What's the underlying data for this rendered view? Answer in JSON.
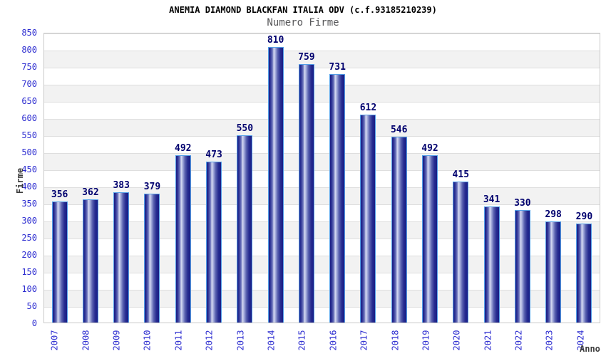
{
  "chart_data": {
    "type": "bar",
    "title": "ANEMIA DIAMOND BLACKFAN ITALIA ODV (c.f.93185210239)",
    "subtitle": "Numero Firme",
    "xlabel": "Anno",
    "ylabel": "Firme",
    "categories": [
      "2007",
      "2008",
      "2009",
      "2010",
      "2011",
      "2012",
      "2013",
      "2014",
      "2015",
      "2016",
      "2017",
      "2018",
      "2019",
      "2020",
      "2021",
      "2022",
      "2023",
      "2024"
    ],
    "values": [
      356,
      362,
      383,
      379,
      492,
      473,
      550,
      810,
      759,
      731,
      612,
      546,
      492,
      415,
      341,
      330,
      298,
      290
    ],
    "ylim": [
      0,
      850
    ],
    "ytick_step": 50,
    "grid": true,
    "legend": "none",
    "colors": {
      "bar_edge_dark": "#191d85",
      "bar_center_light": "#d6daf2",
      "bar_border": "#55a0e8",
      "axis_tick_label": "#2d2dd0",
      "value_label": "#00006e",
      "title": "#000000",
      "subtitle": "#58585a",
      "axis_title": "#3c3c3c",
      "band_stripe": "#f2f2f2",
      "gridline": "#dedede",
      "plot_border": "#c9c9c9"
    }
  }
}
